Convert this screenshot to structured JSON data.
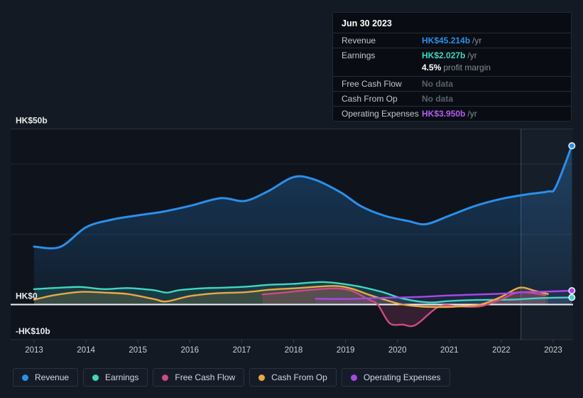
{
  "tooltip": {
    "date": "Jun 30 2023",
    "rows": [
      {
        "label": "Revenue",
        "value": "HK$45.214b",
        "suffix": "/yr",
        "color": "#2B8FEA"
      },
      {
        "label": "Earnings",
        "value": "HK$2.027b",
        "suffix": "/yr",
        "color": "#41D6C1"
      },
      {
        "label": "Free Cash Flow",
        "value": "No data",
        "suffix": "",
        "color": "#596069"
      },
      {
        "label": "Cash From Op",
        "value": "No data",
        "suffix": "",
        "color": "#596069"
      },
      {
        "label": "Operating Expenses",
        "value": "HK$3.950b",
        "suffix": "/yr",
        "color": "#B55BF0"
      }
    ],
    "profit_margin": {
      "value": "4.5%",
      "text": "profit margin"
    }
  },
  "chart_data": {
    "type": "line",
    "title": "Revenue and earnings history",
    "x_axis": {
      "ticks": [
        "2013",
        "2014",
        "2015",
        "2016",
        "2017",
        "2018",
        "2019",
        "2020",
        "2021",
        "2022",
        "2023"
      ],
      "range": [
        2012.55,
        2023.45
      ]
    },
    "y_axis": {
      "unit": "HK$ billions",
      "range": [
        -16.6,
        50
      ],
      "labeled_ticks": [
        {
          "v": 50,
          "label": "HK$50b"
        },
        {
          "v": 0,
          "label": "HK$0"
        },
        {
          "v": -10,
          "label": "-HK$10b"
        }
      ],
      "gridlines": [
        50,
        40,
        20,
        -10
      ],
      "grid": true
    },
    "legend_position": "bottom-left",
    "highlight_span": {
      "from": 2022.38,
      "to": 2023.38
    },
    "series": [
      {
        "name": "Revenue",
        "color": "#2B8FEA",
        "width": 3,
        "fill": true,
        "fill_opacity": 0.3,
        "gradient": true,
        "marker_end": true,
        "points": [
          [
            2013,
            16.5
          ],
          [
            2013.5,
            16.4
          ],
          [
            2014,
            22
          ],
          [
            2014.5,
            24.2
          ],
          [
            2015,
            25.4
          ],
          [
            2015.5,
            26.5
          ],
          [
            2016,
            28.1
          ],
          [
            2016.6,
            30.3
          ],
          [
            2017.05,
            29.5
          ],
          [
            2017.5,
            32.2
          ],
          [
            2018,
            36.3
          ],
          [
            2018.4,
            35.6
          ],
          [
            2018.9,
            32
          ],
          [
            2019.3,
            28
          ],
          [
            2019.75,
            25.3
          ],
          [
            2020.2,
            23.8
          ],
          [
            2020.55,
            22.9
          ],
          [
            2021,
            25.3
          ],
          [
            2021.5,
            28.1
          ],
          [
            2022,
            30.1
          ],
          [
            2022.5,
            31.4
          ],
          [
            2022.9,
            32.2
          ],
          [
            2023.05,
            33.5
          ],
          [
            2023.36,
            45.214
          ]
        ]
      },
      {
        "name": "Earnings",
        "color": "#41D6C1",
        "width": 2.4,
        "fill": true,
        "fill_opacity": 0.16,
        "gradient": false,
        "marker_end": true,
        "points": [
          [
            2013,
            4.4
          ],
          [
            2013.5,
            4.8
          ],
          [
            2013.9,
            5
          ],
          [
            2014.35,
            4.4
          ],
          [
            2014.8,
            4.7
          ],
          [
            2015.3,
            4.1
          ],
          [
            2015.55,
            3.4
          ],
          [
            2015.8,
            4.1
          ],
          [
            2016.2,
            4.6
          ],
          [
            2016.6,
            4.8
          ],
          [
            2017.1,
            5.1
          ],
          [
            2017.5,
            5.6
          ],
          [
            2018,
            5.9
          ],
          [
            2018.6,
            6.4
          ],
          [
            2019.2,
            5.3
          ],
          [
            2019.7,
            3.6
          ],
          [
            2020.1,
            1.7
          ],
          [
            2020.6,
            0.6
          ],
          [
            2021,
            1
          ],
          [
            2021.5,
            1.3
          ],
          [
            2022.2,
            1.4
          ],
          [
            2022.75,
            1.85
          ],
          [
            2023.36,
            2.027
          ]
        ]
      },
      {
        "name": "Free Cash Flow",
        "color": "#CE4A86",
        "width": 2.4,
        "fill": true,
        "fill_opacity": 0.2,
        "gradient": false,
        "marker_end": false,
        "points": [
          [
            2017.4,
            2.9
          ],
          [
            2017.8,
            3.4
          ],
          [
            2018.2,
            4
          ],
          [
            2018.75,
            4.6
          ],
          [
            2019.1,
            4
          ],
          [
            2019.45,
            1.4
          ],
          [
            2019.62,
            0
          ],
          [
            2019.85,
            -5.3
          ],
          [
            2020.1,
            -5.7
          ],
          [
            2020.35,
            -5.8
          ],
          [
            2020.8,
            -0.6
          ],
          [
            2021.2,
            -0.55
          ],
          [
            2021.6,
            -0.5
          ],
          [
            2022,
            1.5
          ],
          [
            2022.35,
            3.5
          ],
          [
            2022.85,
            2.7
          ]
        ]
      },
      {
        "name": "Cash From Op",
        "color": "#E8A943",
        "width": 2.4,
        "fill": true,
        "fill_opacity": 0.16,
        "gradient": false,
        "marker_end": false,
        "points": [
          [
            2013,
            1.4
          ],
          [
            2013.4,
            2.7
          ],
          [
            2013.9,
            3.6
          ],
          [
            2014.35,
            3.4
          ],
          [
            2014.8,
            3
          ],
          [
            2015.3,
            1.6
          ],
          [
            2015.55,
            0.9
          ],
          [
            2016,
            2.4
          ],
          [
            2016.5,
            3.2
          ],
          [
            2017.05,
            3.5
          ],
          [
            2017.6,
            4.3
          ],
          [
            2018.1,
            4.7
          ],
          [
            2018.75,
            5.3
          ],
          [
            2019.1,
            4.6
          ],
          [
            2019.45,
            2.8
          ],
          [
            2019.8,
            1.2
          ],
          [
            2020.1,
            0
          ],
          [
            2020.5,
            -0.6
          ],
          [
            2020.95,
            -0.7
          ],
          [
            2021.2,
            -0.5
          ],
          [
            2021.6,
            0
          ],
          [
            2022,
            2.2
          ],
          [
            2022.35,
            4.8
          ],
          [
            2022.65,
            3.9
          ],
          [
            2022.9,
            3
          ]
        ]
      },
      {
        "name": "Operating Expenses",
        "color": "#A44AE8",
        "width": 2.4,
        "fill": true,
        "fill_opacity": 0.12,
        "gradient": false,
        "marker_end": true,
        "points": [
          [
            2018.43,
            1.65
          ],
          [
            2019,
            1.6
          ],
          [
            2019.5,
            1.8
          ],
          [
            2020,
            2
          ],
          [
            2020.5,
            2.2
          ],
          [
            2021,
            2.6
          ],
          [
            2021.6,
            2.9
          ],
          [
            2022,
            3.1
          ],
          [
            2022.4,
            3.5
          ],
          [
            2022.9,
            3.7
          ],
          [
            2023.36,
            3.95
          ]
        ]
      }
    ]
  }
}
